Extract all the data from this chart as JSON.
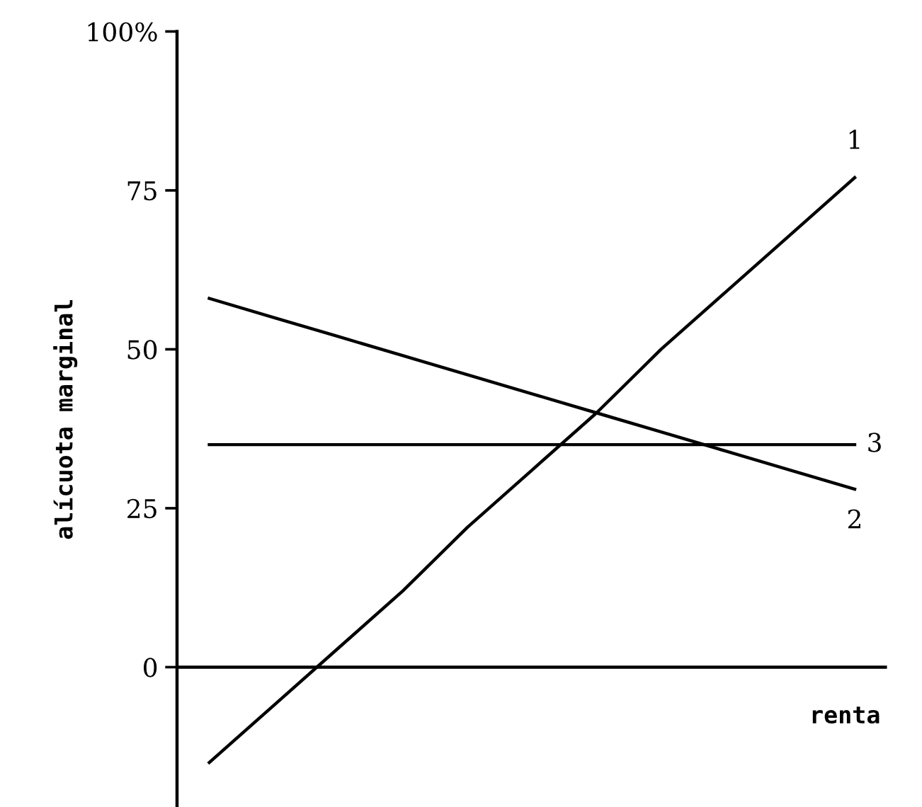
{
  "chart_data": {
    "type": "line",
    "xlabel": "renta",
    "ylabel": "alícuota marginal",
    "categories": [
      null,
      null,
      null,
      null,
      null,
      null,
      null,
      null,
      null,
      null,
      null
    ],
    "series": [
      {
        "name": "1",
        "color": "#000000",
        "values": [
          -15,
          -6,
          3,
          12,
          22,
          31,
          40,
          50,
          59,
          68,
          77
        ]
      },
      {
        "name": "2",
        "color": "#000000",
        "values": [
          58,
          55,
          52,
          49,
          46,
          43,
          40,
          37,
          34,
          31,
          28
        ]
      },
      {
        "name": "3",
        "color": "#000000",
        "values": [
          35,
          35,
          35,
          35,
          35,
          35,
          35,
          35,
          35,
          35,
          35
        ]
      }
    ],
    "ylim": [
      -22,
      100
    ],
    "yticks": [
      {
        "value": 0,
        "label": "0"
      },
      {
        "value": 25,
        "label": "25"
      },
      {
        "value": 50,
        "label": "50"
      },
      {
        "value": 75,
        "label": "75"
      },
      {
        "value": 100,
        "label": "100%"
      }
    ],
    "ref_lines": [
      {
        "axis": "y",
        "value": 0,
        "color": "#000000"
      }
    ],
    "grid": false,
    "legend": false,
    "marker": "none",
    "line_style": "solid"
  }
}
